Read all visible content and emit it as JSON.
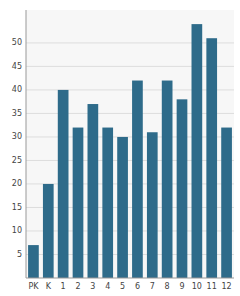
{
  "chart_data": {
    "type": "bar",
    "categories": [
      "PK",
      "K",
      "1",
      "2",
      "3",
      "4",
      "5",
      "6",
      "7",
      "8",
      "9",
      "10",
      "11",
      "12"
    ],
    "values": [
      7,
      20,
      40,
      32,
      37,
      32,
      30,
      42,
      31,
      42,
      38,
      54,
      51,
      32
    ],
    "color": "#2e6b8a",
    "ylim": [
      0,
      57
    ],
    "yticks": [
      5,
      10,
      15,
      20,
      25,
      30,
      35,
      40,
      45,
      50
    ],
    "grid": true
  }
}
